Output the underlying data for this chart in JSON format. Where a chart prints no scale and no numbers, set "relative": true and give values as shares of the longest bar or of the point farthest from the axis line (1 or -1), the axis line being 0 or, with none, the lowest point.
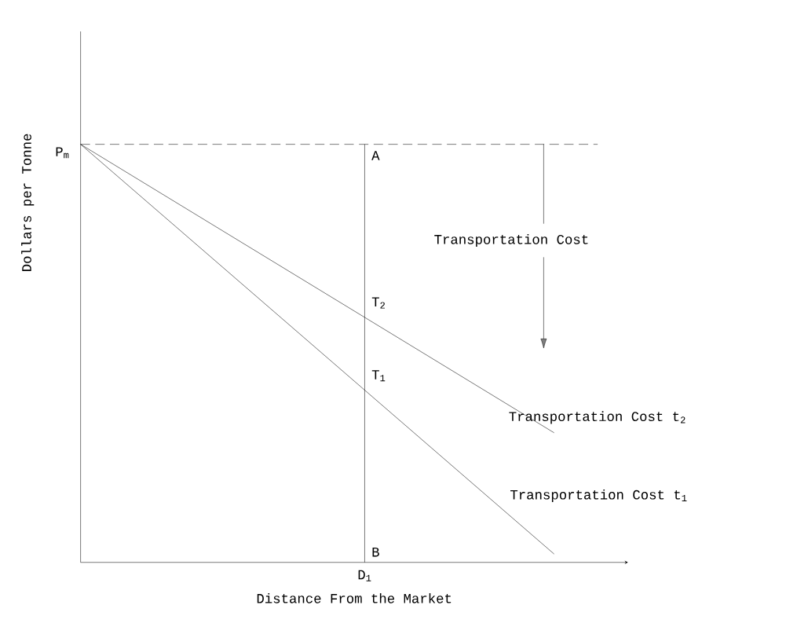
{
  "chart_data": {
    "type": "line",
    "relative": true,
    "xlabel": "Distance From the Market",
    "ylabel": "Dollars per Tonne",
    "categories": [
      null,
      null,
      null,
      null,
      null,
      null
    ],
    "series": [
      {
        "name": "Transportation Cost t$_{2}$",
        "color": "#000000",
        "values": [
          1,
          0.862,
          0.724,
          0.586,
          0.448,
          0.31
        ]
      },
      {
        "name": "Transportation Cost t$_{1}$",
        "color": "#000000",
        "values": [
          1,
          0.804,
          0.608,
          0.412,
          0.216,
          0.02
        ]
      }
    ],
    "ref_lines": [
      {
        "axis": "y",
        "value": 1,
        "label": "P$_{m}$",
        "line_style": "dashed"
      }
    ],
    "annotations": [
      "A",
      "T$_{2}$",
      "T$_{1}$",
      "B",
      "D$_{1}$",
      "Transportation Cost"
    ],
    "legend": false,
    "marker": "none",
    "line_style": "solid",
    "grid": false
  }
}
